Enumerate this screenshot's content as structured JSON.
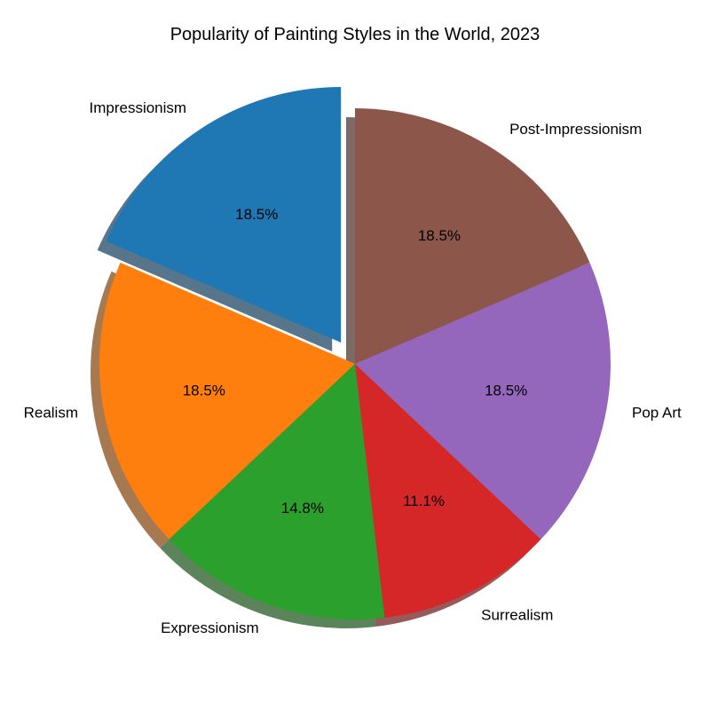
{
  "chart_data": {
    "type": "pie",
    "title": "Popularity of Painting Styles in the World, 2023",
    "start_angle_deg": 90,
    "direction": "counterclockwise",
    "shadow": true,
    "slices": [
      {
        "label": "Impressionism",
        "value": 18.5,
        "percent_label": "18.5%",
        "color": "#1f77b4",
        "exploded": true
      },
      {
        "label": "Realism",
        "value": 18.5,
        "percent_label": "18.5%",
        "color": "#ff7f0e",
        "exploded": false
      },
      {
        "label": "Expressionism",
        "value": 14.8,
        "percent_label": "14.8%",
        "color": "#2ca02c",
        "exploded": false
      },
      {
        "label": "Surrealism",
        "value": 11.1,
        "percent_label": "11.1%",
        "color": "#d62728",
        "exploded": false
      },
      {
        "label": "Pop Art",
        "value": 18.5,
        "percent_label": "18.5%",
        "color": "#9467bd",
        "exploded": false
      },
      {
        "label": "Post-Impressionism",
        "value": 18.5,
        "percent_label": "18.5%",
        "color": "#8c564b",
        "exploded": false
      }
    ]
  }
}
